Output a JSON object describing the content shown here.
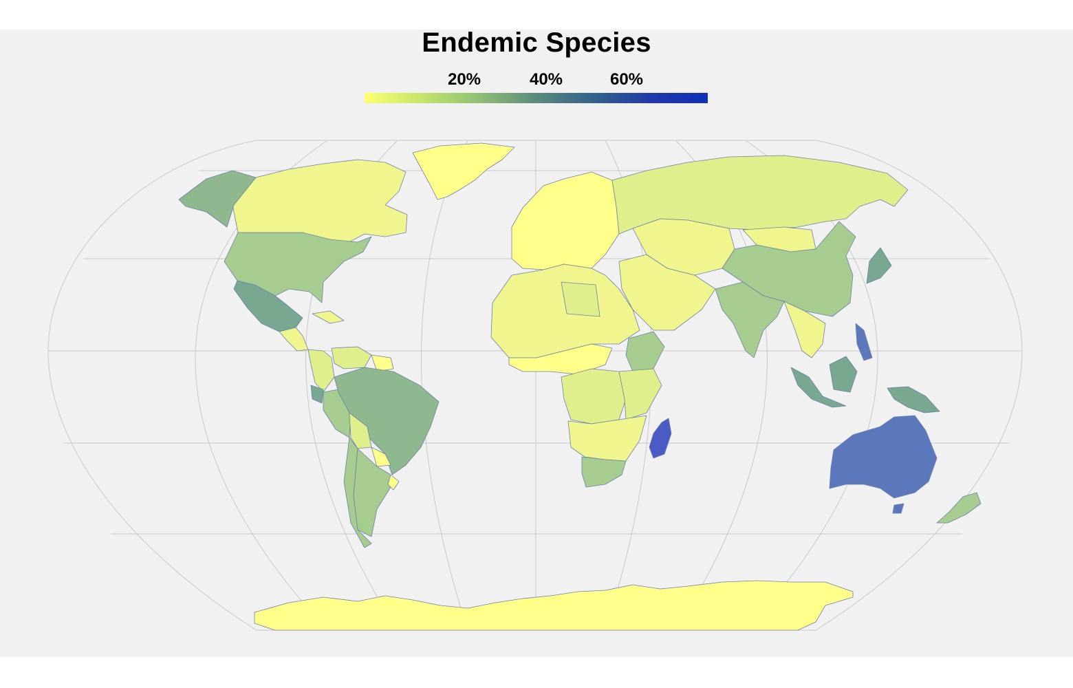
{
  "title": "Endemic Species",
  "legend": {
    "ticks": [
      "20%",
      "40%",
      "60%"
    ],
    "colors": [
      "#ffff70",
      "#c4e46a",
      "#8fbf76",
      "#5a8a7c",
      "#34628a",
      "#1f3aa8",
      "#1030b8"
    ]
  },
  "colors": {
    "ocean": "#f1f1f1",
    "graticule": "#c8c8c8",
    "border": "#6b7fa8",
    "very_low": "#ffff8a",
    "low": "#f1f58e",
    "low_mid": "#dfef8c",
    "mid": "#a6cc8f",
    "mid_high": "#8fb88f",
    "high": "#78a88f",
    "very_high": "#5c78bc",
    "madagascar": "#4a5cc4"
  },
  "regions": [
    {
      "name": "Greenland",
      "level": "very_low"
    },
    {
      "name": "Canada",
      "level": "low"
    },
    {
      "name": "Alaska",
      "level": "mid_high"
    },
    {
      "name": "United States",
      "level": "mid"
    },
    {
      "name": "Mexico",
      "level": "high"
    },
    {
      "name": "Central America",
      "level": "low"
    },
    {
      "name": "Caribbean",
      "level": "low"
    },
    {
      "name": "Colombia",
      "level": "low_mid"
    },
    {
      "name": "Venezuela",
      "level": "low_mid"
    },
    {
      "name": "Guianas",
      "level": "very_low"
    },
    {
      "name": "Ecuador",
      "level": "high"
    },
    {
      "name": "Peru",
      "level": "mid"
    },
    {
      "name": "Brazil",
      "level": "mid_high"
    },
    {
      "name": "Bolivia",
      "level": "low_mid"
    },
    {
      "name": "Paraguay",
      "level": "very_low"
    },
    {
      "name": "Chile",
      "level": "mid"
    },
    {
      "name": "Argentina",
      "level": "mid"
    },
    {
      "name": "Uruguay",
      "level": "very_low"
    },
    {
      "name": "Europe",
      "level": "very_low"
    },
    {
      "name": "Russia",
      "level": "low_mid"
    },
    {
      "name": "Central Asia",
      "level": "low"
    },
    {
      "name": "Middle East",
      "level": "low"
    },
    {
      "name": "North Africa",
      "level": "low"
    },
    {
      "name": "Libya",
      "level": "low_mid"
    },
    {
      "name": "Sahel",
      "level": "very_low"
    },
    {
      "name": "Ethiopia",
      "level": "mid"
    },
    {
      "name": "Central Africa",
      "level": "low_mid"
    },
    {
      "name": "East Africa",
      "level": "low_mid"
    },
    {
      "name": "Southern Africa",
      "level": "low"
    },
    {
      "name": "South Africa",
      "level": "mid"
    },
    {
      "name": "Madagascar",
      "level": "madagascar"
    },
    {
      "name": "India",
      "level": "mid"
    },
    {
      "name": "China",
      "level": "mid"
    },
    {
      "name": "Mongolia",
      "level": "low"
    },
    {
      "name": "Southeast Asia",
      "level": "low"
    },
    {
      "name": "Japan",
      "level": "high"
    },
    {
      "name": "Philippines",
      "level": "very_high"
    },
    {
      "name": "Indonesia",
      "level": "high"
    },
    {
      "name": "Borneo",
      "level": "high"
    },
    {
      "name": "New Guinea",
      "level": "high"
    },
    {
      "name": "Australia",
      "level": "very_high"
    },
    {
      "name": "New Zealand",
      "level": "mid"
    },
    {
      "name": "Antarctica",
      "level": "very_low"
    }
  ]
}
